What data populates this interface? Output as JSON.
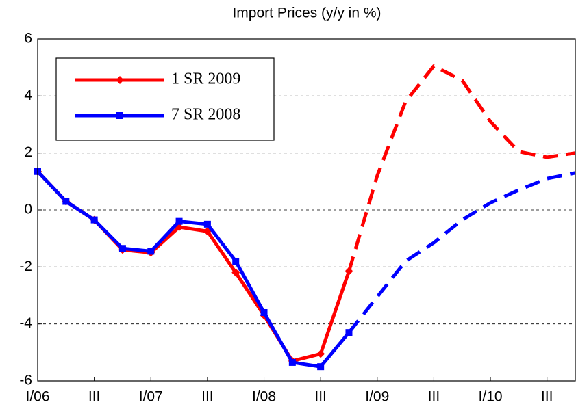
{
  "chart_data": {
    "type": "line",
    "title": "Import Prices (y/y  in %)",
    "categories": [
      "I/06",
      null,
      "III",
      null,
      "I/07",
      null,
      "III",
      null,
      "I/08",
      null,
      "III",
      null,
      "I/09",
      null,
      "III",
      null,
      "I/10",
      null,
      "III",
      null
    ],
    "series": [
      {
        "name": "1 SR 2009",
        "color": "#ff0000",
        "marker": "diamond",
        "dash_from_index": 11,
        "values": [
          1.35,
          0.3,
          -0.35,
          -1.4,
          -1.5,
          -0.6,
          -0.75,
          -2.2,
          -3.7,
          -5.3,
          -5.05,
          -2.15,
          1.2,
          3.8,
          5.05,
          4.55,
          3.1,
          2.05,
          1.85,
          2.0
        ]
      },
      {
        "name": "7 SR 2008",
        "color": "#0000ff",
        "marker": "square",
        "dash_from_index": 11,
        "values": [
          1.35,
          0.3,
          -0.35,
          -1.35,
          -1.45,
          -0.4,
          -0.5,
          -1.8,
          -3.6,
          -5.35,
          -5.5,
          -4.3,
          -3.05,
          -1.8,
          -1.15,
          -0.35,
          0.25,
          0.7,
          1.1,
          1.3
        ]
      }
    ],
    "ylim": [
      -6,
      6
    ],
    "yticks": [
      -6,
      -4,
      -2,
      0,
      2,
      4,
      6
    ],
    "grid": true,
    "legend": "upper left"
  }
}
